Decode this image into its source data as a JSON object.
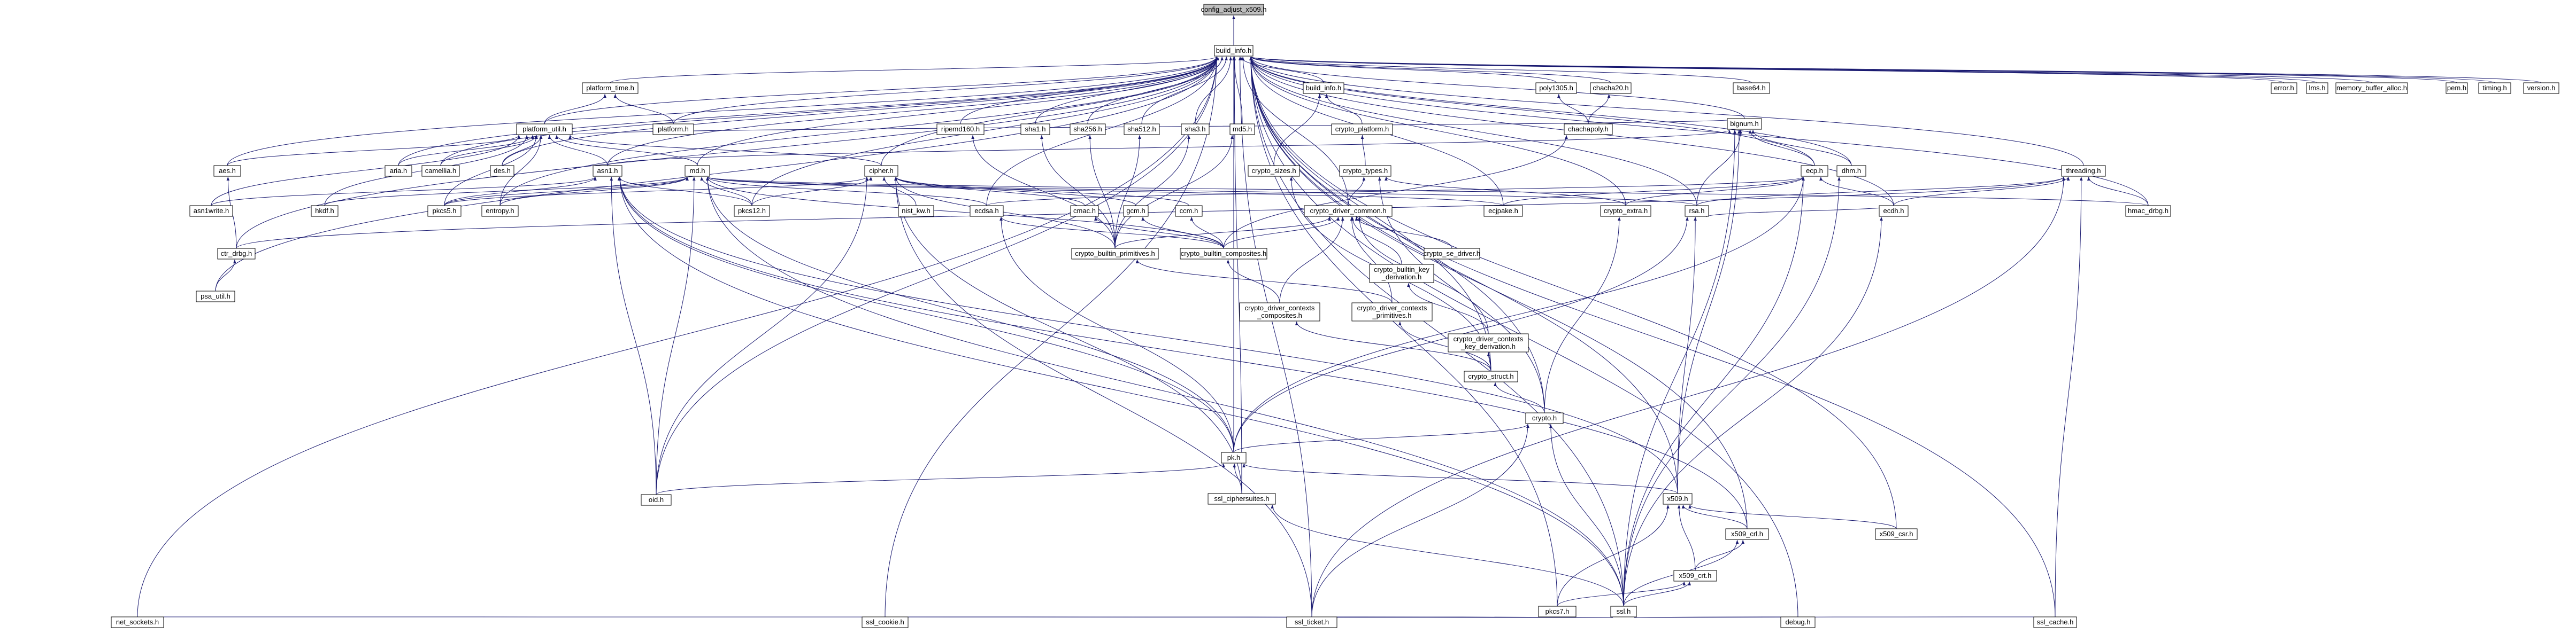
{
  "colors": {
    "edge": "#191970",
    "node_fill": "#ffffff",
    "node_stroke": "#000000",
    "root_fill": "#bfbfbf",
    "background": "#ffffff"
  },
  "nodes": [
    {
      "id": "config_adjust_x509",
      "label": "config_adjust_x509.h",
      "root": true
    },
    {
      "id": "build_info",
      "label": "build_info.h"
    },
    {
      "id": "platform_time",
      "label": "platform_time.h"
    },
    {
      "id": "platform_util",
      "label": "platform_util.h"
    },
    {
      "id": "platform",
      "label": "platform.h"
    },
    {
      "id": "build_info2",
      "label": "build_info.h"
    },
    {
      "id": "crypto_platform",
      "label": "crypto_platform.h"
    },
    {
      "id": "crypto_sizes",
      "label": "crypto_sizes.h"
    },
    {
      "id": "crypto_types",
      "label": "crypto_types.h"
    },
    {
      "id": "poly1305",
      "label": "poly1305.h"
    },
    {
      "id": "chacha20",
      "label": "chacha20.h"
    },
    {
      "id": "chachapoly",
      "label": "chachapoly.h"
    },
    {
      "id": "base64",
      "label": "base64.h"
    },
    {
      "id": "bignum",
      "label": "bignum.h"
    },
    {
      "id": "ecp",
      "label": "ecp.h"
    },
    {
      "id": "dhm",
      "label": "dhm.h"
    },
    {
      "id": "threading",
      "label": "threading.h"
    },
    {
      "id": "error",
      "label": "error.h"
    },
    {
      "id": "lms",
      "label": "lms.h"
    },
    {
      "id": "memory_buffer_alloc",
      "label": "memory_buffer_alloc.h"
    },
    {
      "id": "pem",
      "label": "pem.h"
    },
    {
      "id": "pkcs12",
      "label": "pkcs12.h"
    },
    {
      "id": "timing",
      "label": "timing.h"
    },
    {
      "id": "version",
      "label": "version.h"
    },
    {
      "id": "ripemd160",
      "label": "ripemd160.h"
    },
    {
      "id": "sha1",
      "label": "sha1.h"
    },
    {
      "id": "sha256",
      "label": "sha256.h"
    },
    {
      "id": "sha512",
      "label": "sha512.h"
    },
    {
      "id": "sha3",
      "label": "sha3.h"
    },
    {
      "id": "md5",
      "label": "md5.h"
    },
    {
      "id": "aes",
      "label": "aes.h"
    },
    {
      "id": "aria",
      "label": "aria.h"
    },
    {
      "id": "camellia",
      "label": "camellia.h"
    },
    {
      "id": "des",
      "label": "des.h"
    },
    {
      "id": "asn1",
      "label": "asn1.h"
    },
    {
      "id": "md",
      "label": "md.h"
    },
    {
      "id": "cipher",
      "label": "cipher.h"
    },
    {
      "id": "asn1write",
      "label": "asn1write.h"
    },
    {
      "id": "hkdf",
      "label": "hkdf.h"
    },
    {
      "id": "pkcs5",
      "label": "pkcs5.h"
    },
    {
      "id": "entropy",
      "label": "entropy.h"
    },
    {
      "id": "nist_kw",
      "label": "nist_kw.h"
    },
    {
      "id": "ecdsa",
      "label": "ecdsa.h"
    },
    {
      "id": "cmac",
      "label": "cmac.h"
    },
    {
      "id": "gcm",
      "label": "gcm.h"
    },
    {
      "id": "ccm",
      "label": "ccm.h"
    },
    {
      "id": "crypto_driver_common",
      "label": "crypto_driver_common.h"
    },
    {
      "id": "ecjpake",
      "label": "ecjpake.h"
    },
    {
      "id": "crypto_extra",
      "label": "crypto_extra.h"
    },
    {
      "id": "rsa",
      "label": "rsa.h"
    },
    {
      "id": "ecdh",
      "label": "ecdh.h"
    },
    {
      "id": "hmac_drbg",
      "label": "hmac_drbg.h"
    },
    {
      "id": "ctr_drbg",
      "label": "ctr_drbg.h"
    },
    {
      "id": "psa_util",
      "label": "psa_util.h"
    },
    {
      "id": "crypto_builtin_primitives",
      "label": "crypto_builtin_primitives.h"
    },
    {
      "id": "crypto_builtin_composites",
      "label": "crypto_builtin_composites.h"
    },
    {
      "id": "crypto_se_driver",
      "label": "crypto_se_driver.h"
    },
    {
      "id": "crypto_builtin_key_derivation",
      "label": "crypto_builtin_key\n_derivation.h"
    },
    {
      "id": "crypto_driver_contexts_composites",
      "label": "crypto_driver_contexts\n_composites.h"
    },
    {
      "id": "crypto_driver_contexts_primitives",
      "label": "crypto_driver_contexts\n_primitives.h"
    },
    {
      "id": "crypto_driver_contexts_key_derivation",
      "label": "crypto_driver_contexts\n_key_derivation.h"
    },
    {
      "id": "crypto_struct",
      "label": "crypto_struct.h"
    },
    {
      "id": "crypto",
      "label": "crypto.h"
    },
    {
      "id": "pk",
      "label": "pk.h"
    },
    {
      "id": "oid",
      "label": "oid.h"
    },
    {
      "id": "ssl_ciphersuites",
      "label": "ssl_ciphersuites.h"
    },
    {
      "id": "x509",
      "label": "x509.h"
    },
    {
      "id": "x509_crl",
      "label": "x509_crl.h"
    },
    {
      "id": "x509_csr",
      "label": "x509_csr.h"
    },
    {
      "id": "x509_crt",
      "label": "x509_crt.h"
    },
    {
      "id": "pkcs7",
      "label": "pkcs7.h"
    },
    {
      "id": "ssl",
      "label": "ssl.h"
    },
    {
      "id": "net_sockets",
      "label": "net_sockets.h"
    },
    {
      "id": "ssl_cookie",
      "label": "ssl_cookie.h"
    },
    {
      "id": "ssl_ticket",
      "label": "ssl_ticket.h"
    },
    {
      "id": "debug",
      "label": "debug.h"
    },
    {
      "id": "ssl_cache",
      "label": "ssl_cache.h"
    }
  ],
  "edges": [
    [
      "build_info",
      "config_adjust_x509"
    ],
    [
      "platform_time",
      "build_info"
    ],
    [
      "platform_util",
      "build_info"
    ],
    [
      "platform",
      "build_info"
    ],
    [
      "build_info2",
      "build_info"
    ],
    [
      "poly1305",
      "build_info"
    ],
    [
      "chacha20",
      "build_info"
    ],
    [
      "base64",
      "build_info"
    ],
    [
      "bignum",
      "build_info"
    ],
    [
      "ecp",
      "build_info"
    ],
    [
      "dhm",
      "build_info"
    ],
    [
      "threading",
      "build_info"
    ],
    [
      "error",
      "build_info"
    ],
    [
      "lms",
      "build_info"
    ],
    [
      "memory_buffer_alloc",
      "build_info"
    ],
    [
      "pem",
      "build_info"
    ],
    [
      "pkcs12",
      "build_info"
    ],
    [
      "timing",
      "build_info"
    ],
    [
      "version",
      "build_info"
    ],
    [
      "ripemd160",
      "build_info"
    ],
    [
      "sha1",
      "build_info"
    ],
    [
      "sha256",
      "build_info"
    ],
    [
      "sha512",
      "build_info"
    ],
    [
      "sha3",
      "build_info"
    ],
    [
      "md5",
      "build_info"
    ],
    [
      "aes",
      "build_info"
    ],
    [
      "aria",
      "build_info"
    ],
    [
      "camellia",
      "build_info"
    ],
    [
      "des",
      "build_info"
    ],
    [
      "asn1",
      "build_info"
    ],
    [
      "md",
      "build_info"
    ],
    [
      "cipher",
      "build_info"
    ],
    [
      "ecdsa",
      "build_info"
    ],
    [
      "ecjpake",
      "build_info"
    ],
    [
      "rsa",
      "build_info"
    ],
    [
      "ecdh",
      "build_info"
    ],
    [
      "hmac_drbg",
      "build_info"
    ],
    [
      "ctr_drbg",
      "build_info"
    ],
    [
      "psa_util",
      "build_info"
    ],
    [
      "pk",
      "build_info"
    ],
    [
      "x509",
      "build_info"
    ],
    [
      "x509_crl",
      "build_info"
    ],
    [
      "ssl",
      "build_info"
    ],
    [
      "ssl_cookie",
      "build_info"
    ],
    [
      "ssl_ticket",
      "build_info"
    ],
    [
      "net_sockets",
      "build_info"
    ],
    [
      "ssl_cache",
      "build_info"
    ],
    [
      "ssl_ciphersuites",
      "build_info"
    ],
    [
      "oid",
      "build_info"
    ],
    [
      "entropy",
      "build_info"
    ],
    [
      "crypto_extra",
      "build_info"
    ],
    [
      "crypto_driver_common",
      "build_info"
    ],
    [
      "x509_csr",
      "build_info"
    ],
    [
      "pkcs7",
      "build_info"
    ],
    [
      "debug",
      "build_info"
    ],
    [
      "crypto_struct",
      "build_info"
    ],
    [
      "crypto",
      "build_info"
    ],
    [
      "platform_util",
      "platform_time"
    ],
    [
      "platform",
      "platform_time"
    ],
    [
      "aes",
      "platform_util"
    ],
    [
      "aria",
      "platform_util"
    ],
    [
      "camellia",
      "platform_util"
    ],
    [
      "des",
      "platform_util"
    ],
    [
      "asn1",
      "platform_util"
    ],
    [
      "md",
      "platform_util"
    ],
    [
      "cipher",
      "platform_util"
    ],
    [
      "asn1write",
      "platform_util"
    ],
    [
      "hkdf",
      "platform_util"
    ],
    [
      "pkcs5",
      "platform_util"
    ],
    [
      "bignum",
      "platform_util"
    ],
    [
      "entropy",
      "platform_util"
    ],
    [
      "crypto_platform",
      "build_info2"
    ],
    [
      "crypto_sizes",
      "build_info2"
    ],
    [
      "crypto_types",
      "crypto_platform"
    ],
    [
      "crypto_driver_common",
      "crypto_types"
    ],
    [
      "crypto_extra",
      "crypto_types"
    ],
    [
      "crypto",
      "crypto_types"
    ],
    [
      "crypto_struct",
      "crypto_sizes"
    ],
    [
      "chachapoly",
      "poly1305"
    ],
    [
      "chachapoly",
      "chacha20"
    ],
    [
      "crypto_builtin_composites",
      "chachapoly"
    ],
    [
      "ecp",
      "bignum"
    ],
    [
      "dhm",
      "bignum"
    ],
    [
      "rsa",
      "bignum"
    ],
    [
      "asn1",
      "bignum"
    ],
    [
      "x509",
      "bignum"
    ],
    [
      "ssl",
      "bignum"
    ],
    [
      "ecdsa",
      "ecp"
    ],
    [
      "ecjpake",
      "ecp"
    ],
    [
      "ecdh",
      "ecp"
    ],
    [
      "crypto_extra",
      "ecp"
    ],
    [
      "pk",
      "ecp"
    ],
    [
      "ssl",
      "ecp"
    ],
    [
      "ssl",
      "dhm"
    ],
    [
      "rsa",
      "threading"
    ],
    [
      "hmac_drbg",
      "threading"
    ],
    [
      "ctr_drbg",
      "threading"
    ],
    [
      "ssl_cache",
      "threading"
    ],
    [
      "ssl_ticket",
      "threading"
    ],
    [
      "ecdh",
      "threading"
    ],
    [
      "crypto_builtin_primitives",
      "ripemd160"
    ],
    [
      "crypto_builtin_primitives",
      "sha1"
    ],
    [
      "crypto_builtin_primitives",
      "sha256"
    ],
    [
      "crypto_builtin_primitives",
      "sha512"
    ],
    [
      "crypto_builtin_primitives",
      "sha3"
    ],
    [
      "crypto_builtin_primitives",
      "md5"
    ],
    [
      "ctr_drbg",
      "aes"
    ],
    [
      "psa_util",
      "ctr_drbg"
    ],
    [
      "asn1write",
      "asn1"
    ],
    [
      "pkcs5",
      "asn1"
    ],
    [
      "pkcs12",
      "asn1"
    ],
    [
      "oid",
      "asn1"
    ],
    [
      "pk",
      "asn1"
    ],
    [
      "x509",
      "asn1"
    ],
    [
      "x509_crl",
      "asn1"
    ],
    [
      "ssl",
      "asn1"
    ],
    [
      "hkdf",
      "md"
    ],
    [
      "pkcs5",
      "md"
    ],
    [
      "pkcs12",
      "md"
    ],
    [
      "entropy",
      "md"
    ],
    [
      "ecjpake",
      "md"
    ],
    [
      "rsa",
      "md"
    ],
    [
      "hmac_drbg",
      "md"
    ],
    [
      "oid",
      "md"
    ],
    [
      "pk",
      "md"
    ],
    [
      "ssl",
      "md"
    ],
    [
      "crypto_builtin_composites",
      "md"
    ],
    [
      "ecdsa",
      "md"
    ],
    [
      "nist_kw",
      "cipher"
    ],
    [
      "cmac",
      "cipher"
    ],
    [
      "gcm",
      "cipher"
    ],
    [
      "ccm",
      "cipher"
    ],
    [
      "pkcs5",
      "cipher"
    ],
    [
      "pkcs12",
      "cipher"
    ],
    [
      "crypto_builtin_primitives",
      "cipher"
    ],
    [
      "oid",
      "cipher"
    ],
    [
      "ssl_ciphersuites",
      "cipher"
    ],
    [
      "ssl_ticket",
      "cipher"
    ],
    [
      "crypto_builtin_composites",
      "cmac"
    ],
    [
      "crypto_builtin_composites",
      "gcm"
    ],
    [
      "crypto_builtin_composites",
      "ccm"
    ],
    [
      "crypto_builtin_composites",
      "ecdsa"
    ],
    [
      "pk",
      "ecdsa"
    ],
    [
      "crypto_builtin_primitives",
      "crypto_driver_common"
    ],
    [
      "crypto_builtin_composites",
      "crypto_driver_common"
    ],
    [
      "crypto_se_driver",
      "crypto_driver_common"
    ],
    [
      "crypto_builtin_key_derivation",
      "crypto_driver_common"
    ],
    [
      "crypto_driver_contexts_composites",
      "crypto_driver_common"
    ],
    [
      "crypto_driver_contexts_primitives",
      "crypto_driver_common"
    ],
    [
      "crypto_driver_contexts_key_derivation",
      "crypto_driver_common"
    ],
    [
      "crypto_driver_contexts_composites",
      "crypto_builtin_composites"
    ],
    [
      "crypto_driver_contexts_primitives",
      "crypto_builtin_primitives"
    ],
    [
      "crypto_driver_contexts_key_derivation",
      "crypto_builtin_key_derivation"
    ],
    [
      "crypto_struct",
      "crypto_driver_contexts_composites"
    ],
    [
      "crypto_struct",
      "crypto_driver_contexts_primitives"
    ],
    [
      "crypto_struct",
      "crypto_driver_contexts_key_derivation"
    ],
    [
      "crypto",
      "crypto_struct"
    ],
    [
      "crypto",
      "crypto_extra"
    ],
    [
      "pk",
      "crypto"
    ],
    [
      "ssl",
      "crypto"
    ],
    [
      "ssl_ticket",
      "crypto"
    ],
    [
      "pk",
      "rsa"
    ],
    [
      "x509",
      "rsa"
    ],
    [
      "ecdh",
      "rsa"
    ],
    [
      "ssl",
      "ecdh"
    ],
    [
      "ssl_ciphersuites",
      "pk"
    ],
    [
      "x509",
      "pk"
    ],
    [
      "oid",
      "pk"
    ],
    [
      "ssl",
      "ssl_ciphersuites"
    ],
    [
      "x509_crl",
      "x509"
    ],
    [
      "x509_csr",
      "x509"
    ],
    [
      "x509_crt",
      "x509"
    ],
    [
      "pkcs7",
      "x509"
    ],
    [
      "x509_crt",
      "x509_crl"
    ],
    [
      "ssl",
      "x509_crl"
    ],
    [
      "ssl",
      "x509_crt"
    ],
    [
      "pkcs7",
      "x509_crt"
    ],
    [
      "ssl_cookie",
      "ssl"
    ],
    [
      "ssl_ticket",
      "ssl"
    ],
    [
      "debug",
      "ssl"
    ],
    [
      "ssl_cache",
      "ssl"
    ],
    [
      "net_sockets",
      "ssl"
    ]
  ]
}
